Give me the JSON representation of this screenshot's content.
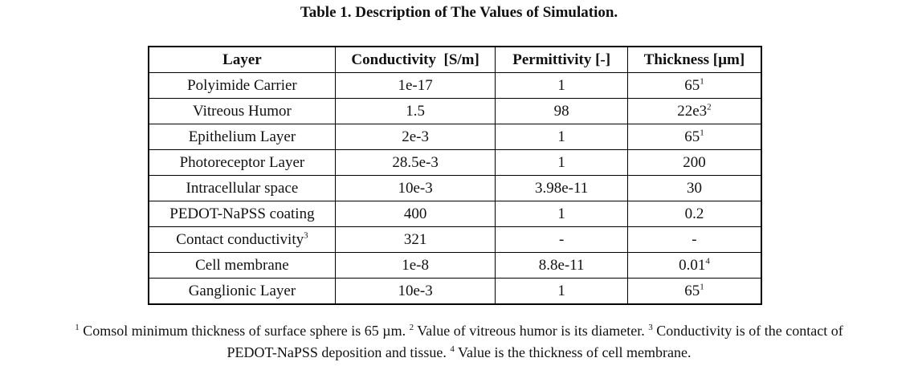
{
  "caption": "Table 1. Description of The Values of Simulation.",
  "table": {
    "headers": [
      "Layer",
      "Conductivity  [S/m]",
      "Permittivity [-]",
      "Thickness [µm]"
    ],
    "rows": [
      {
        "layer": "Polyimide Carrier",
        "layer_sup": "",
        "conductivity": "1e-17",
        "permittivity": "1",
        "thickness": "65",
        "thickness_sup": "1"
      },
      {
        "layer": "Vitreous Humor",
        "layer_sup": "",
        "conductivity": "1.5",
        "permittivity": "98",
        "thickness": "22e3",
        "thickness_sup": "2"
      },
      {
        "layer": "Epithelium Layer",
        "layer_sup": "",
        "conductivity": "2e-3",
        "permittivity": "1",
        "thickness": "65",
        "thickness_sup": "1"
      },
      {
        "layer": "Photoreceptor Layer",
        "layer_sup": "",
        "conductivity": "28.5e-3",
        "permittivity": "1",
        "thickness": "200",
        "thickness_sup": ""
      },
      {
        "layer": "Intracellular space",
        "layer_sup": "",
        "conductivity": "10e-3",
        "permittivity": "3.98e-11",
        "thickness": "30",
        "thickness_sup": ""
      },
      {
        "layer": "PEDOT-NaPSS coating",
        "layer_sup": "",
        "conductivity": "400",
        "permittivity": "1",
        "thickness": "0.2",
        "thickness_sup": ""
      },
      {
        "layer": "Contact conductivity",
        "layer_sup": "3",
        "conductivity": "321",
        "permittivity": "-",
        "thickness": "-",
        "thickness_sup": ""
      },
      {
        "layer": "Cell membrane",
        "layer_sup": "",
        "conductivity": "1e-8",
        "permittivity": "8.8e-11",
        "thickness": "0.01",
        "thickness_sup": "4"
      },
      {
        "layer": "Ganglionic Layer",
        "layer_sup": "",
        "conductivity": "10e-3",
        "permittivity": "1",
        "thickness": "65",
        "thickness_sup": "1"
      }
    ]
  },
  "footnotes": {
    "n1": "1",
    "t1": " Comsol minimum thickness of surface sphere is 65 µm. ",
    "n2": "2",
    "t2": " Value of vitreous humor is its diameter. ",
    "n3": "3",
    "t3": " Conductivity is of the contact of",
    "t3b": "PEDOT-NaPSS deposition and tissue. ",
    "n4": "4",
    "t4": " Value is the thickness of cell membrane."
  }
}
